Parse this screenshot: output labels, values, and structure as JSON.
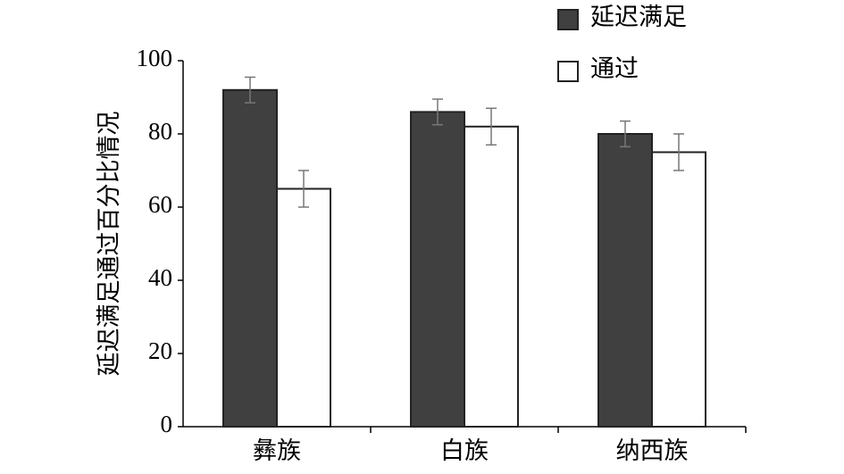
{
  "chart_data": {
    "type": "bar",
    "y_label": "延迟满足通过百分比情况",
    "categories": [
      "彝族",
      "白族",
      "纳西族"
    ],
    "series": [
      {
        "name": "延迟满足",
        "color": "#404040",
        "values": [
          92,
          86,
          80
        ],
        "errors": [
          3.5,
          3.5,
          3.5
        ]
      },
      {
        "name": "通过",
        "color": "#ffffff",
        "values": [
          65,
          82,
          75
        ],
        "errors": [
          5,
          5,
          5
        ]
      }
    ],
    "ylim": [
      0,
      100
    ],
    "yticks": [
      0,
      20,
      40,
      60,
      80,
      100
    ],
    "grid": false,
    "legend": "upper right"
  }
}
